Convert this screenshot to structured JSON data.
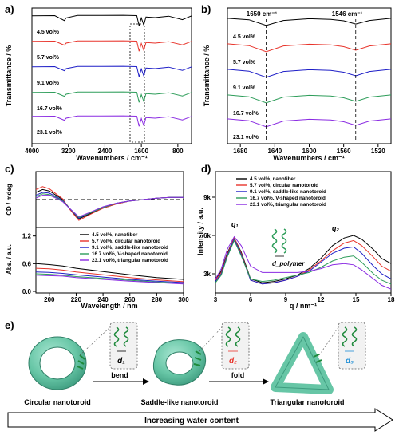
{
  "chart_data": [
    {
      "panel": "a)",
      "type": "line",
      "xlabel": "Wavenumbers / cm⁻¹",
      "ylabel": "Transmittance / %",
      "x_ticks": [
        4000,
        3200,
        2400,
        1600,
        800
      ],
      "xlim": [
        4000,
        500
      ],
      "x_reversed": true,
      "series": [
        {
          "name": "4.5 vol%",
          "color": "#000000",
          "x": [
            4000,
            3500,
            3290,
            3250,
            3000,
            2000,
            1700,
            1650,
            1600,
            1546,
            1500,
            1300,
            1000,
            700,
            500
          ],
          "y": [
            0.92,
            0.93,
            0.65,
            0.8,
            0.94,
            0.95,
            0.93,
            0.35,
            0.8,
            0.4,
            0.85,
            0.82,
            0.9,
            0.7,
            0.92
          ]
        },
        {
          "name": "5.7 vol%",
          "color": "#e8342b",
          "x": [
            4000,
            3500,
            3290,
            3250,
            3000,
            2000,
            1700,
            1650,
            1600,
            1546,
            1500,
            1300,
            1000,
            700,
            500
          ],
          "y": [
            0.92,
            0.93,
            0.7,
            0.82,
            0.94,
            0.95,
            0.93,
            0.35,
            0.8,
            0.4,
            0.85,
            0.82,
            0.9,
            0.72,
            0.92
          ]
        },
        {
          "name": "9.1 vol%",
          "color": "#1f1fc7",
          "x": [
            4000,
            3500,
            3290,
            3250,
            3000,
            2000,
            1700,
            1650,
            1600,
            1546,
            1500,
            1300,
            1000,
            700,
            500
          ],
          "y": [
            0.92,
            0.93,
            0.7,
            0.82,
            0.94,
            0.95,
            0.93,
            0.35,
            0.8,
            0.4,
            0.85,
            0.82,
            0.9,
            0.72,
            0.92
          ]
        },
        {
          "name": "16.7 vol%",
          "color": "#2e9d5a",
          "x": [
            4000,
            3500,
            3290,
            3250,
            3000,
            2000,
            1700,
            1650,
            1600,
            1546,
            1500,
            1300,
            1000,
            700,
            500
          ],
          "y": [
            0.92,
            0.93,
            0.7,
            0.82,
            0.94,
            0.95,
            0.93,
            0.35,
            0.8,
            0.4,
            0.85,
            0.82,
            0.9,
            0.72,
            0.92
          ]
        },
        {
          "name": "23.1 vol%",
          "color": "#8a2be2",
          "x": [
            4000,
            3500,
            3290,
            3250,
            3000,
            2000,
            1700,
            1650,
            1600,
            1546,
            1500,
            1300,
            1000,
            700,
            500
          ],
          "y": [
            0.92,
            0.93,
            0.7,
            0.82,
            0.94,
            0.95,
            0.93,
            0.35,
            0.8,
            0.4,
            0.85,
            0.82,
            0.9,
            0.72,
            0.92
          ]
        }
      ]
    },
    {
      "panel": "b)",
      "type": "line",
      "xlabel": "Wavenumbers / cm⁻¹",
      "ylabel": "Transmittance / %",
      "x_ticks": [
        1680,
        1640,
        1600,
        1560,
        1520
      ],
      "xlim": [
        1695,
        1505
      ],
      "x_reversed": true,
      "annotations": [
        "1650 cm⁻¹",
        "1546 cm⁻¹"
      ],
      "marker_lines_x": [
        1650,
        1546
      ],
      "series": [
        {
          "name": "4.5 vol%",
          "color": "#000000",
          "x": [
            1695,
            1670,
            1650,
            1630,
            1600,
            1575,
            1560,
            1546,
            1530,
            1505
          ],
          "y": [
            0.95,
            0.85,
            0.45,
            0.8,
            0.92,
            0.88,
            0.78,
            0.55,
            0.8,
            0.95
          ]
        },
        {
          "name": "5.7 vol%",
          "color": "#e8342b",
          "x": [
            1695,
            1670,
            1650,
            1630,
            1600,
            1575,
            1560,
            1546,
            1530,
            1505
          ],
          "y": [
            0.95,
            0.82,
            0.4,
            0.8,
            0.92,
            0.88,
            0.75,
            0.5,
            0.8,
            0.95
          ]
        },
        {
          "name": "9.1 vol%",
          "color": "#1f1fc7",
          "x": [
            1695,
            1670,
            1650,
            1630,
            1600,
            1575,
            1560,
            1546,
            1530,
            1505
          ],
          "y": [
            0.95,
            0.82,
            0.4,
            0.8,
            0.92,
            0.88,
            0.75,
            0.5,
            0.8,
            0.95
          ]
        },
        {
          "name": "16.7 vol%",
          "color": "#2e9d5a",
          "x": [
            1695,
            1670,
            1650,
            1630,
            1600,
            1575,
            1560,
            1546,
            1530,
            1505
          ],
          "y": [
            0.95,
            0.82,
            0.4,
            0.8,
            0.92,
            0.88,
            0.75,
            0.5,
            0.8,
            0.95
          ]
        },
        {
          "name": "23.1 vol%",
          "color": "#8a2be2",
          "x": [
            1695,
            1670,
            1650,
            1630,
            1600,
            1575,
            1560,
            1546,
            1530,
            1505
          ],
          "y": [
            0.95,
            0.82,
            0.4,
            0.8,
            0.92,
            0.88,
            0.75,
            0.5,
            0.8,
            0.95
          ]
        }
      ]
    },
    {
      "panel": "c) top",
      "type": "line",
      "xlabel": "",
      "ylabel": "CD / mdeg",
      "x_ticks": [
        200,
        220,
        240,
        260,
        280,
        300
      ],
      "xlim": [
        190,
        300
      ],
      "zero_line": true,
      "series": [
        {
          "name": "4.5 vol%, nanofiber",
          "color": "#000000",
          "x": [
            190,
            195,
            200,
            205,
            210,
            215,
            222,
            230,
            240,
            250,
            260,
            270,
            280,
            290,
            300
          ],
          "y": [
            10,
            14,
            12,
            6,
            0,
            -12,
            -27,
            -20,
            -12,
            -6,
            -2,
            0,
            2,
            3,
            3
          ]
        },
        {
          "name": "5.7 vol%, circular nanotoroid",
          "color": "#e8342b",
          "x": [
            190,
            195,
            200,
            205,
            210,
            215,
            222,
            230,
            240,
            250,
            260,
            270,
            280,
            290,
            300
          ],
          "y": [
            14,
            18,
            15,
            8,
            1,
            -13,
            -29,
            -21,
            -12,
            -6,
            -2,
            0,
            2,
            3,
            3
          ]
        },
        {
          "name": "9.1 vol%, saddle-like nanotoroid",
          "color": "#1f1fc7",
          "x": [
            190,
            195,
            200,
            205,
            210,
            215,
            222,
            230,
            240,
            250,
            260,
            270,
            280,
            290,
            300
          ],
          "y": [
            6,
            10,
            9,
            4,
            -1,
            -12,
            -26,
            -19,
            -11,
            -5,
            -2,
            0,
            2,
            3,
            3
          ]
        },
        {
          "name": "16.7 vol%, V-shaped nanotoroid",
          "color": "#2e9d5a",
          "x": [
            190,
            195,
            200,
            205,
            210,
            215,
            222,
            230,
            240,
            250,
            260,
            270,
            280,
            290,
            300
          ],
          "y": [
            4,
            8,
            7,
            3,
            -2,
            -12,
            -25,
            -19,
            -11,
            -5,
            -2,
            0,
            2,
            3,
            3
          ]
        },
        {
          "name": "23.1 vol%, triangular nanotoroid",
          "color": "#8a2be2",
          "x": [
            190,
            195,
            200,
            205,
            210,
            215,
            222,
            230,
            240,
            250,
            260,
            270,
            280,
            290,
            300
          ],
          "y": [
            2,
            6,
            6,
            2,
            -3,
            -12,
            -24,
            -18,
            -10,
            -5,
            -2,
            0,
            2,
            3,
            3
          ]
        }
      ]
    },
    {
      "panel": "c) bottom",
      "type": "line",
      "xlabel": "Wavelength / nm",
      "ylabel": "Abs. / a.u.",
      "x_ticks": [
        200,
        220,
        240,
        260,
        280,
        300
      ],
      "y_ticks": [
        0.0,
        0.6,
        1.2
      ],
      "xlim": [
        190,
        300
      ],
      "ylim": [
        0,
        1.35
      ],
      "series": [
        {
          "name": "4.5 vol%, nanofiber",
          "color": "#000000",
          "x": [
            190,
            200,
            210,
            220,
            240,
            260,
            280,
            300
          ],
          "y": [
            0.6,
            0.58,
            0.55,
            0.5,
            0.43,
            0.36,
            0.3,
            0.26
          ]
        },
        {
          "name": "5.7 vol%, circular nanotoroid",
          "color": "#e8342b",
          "x": [
            190,
            200,
            210,
            220,
            240,
            260,
            280,
            300
          ],
          "y": [
            0.5,
            0.49,
            0.46,
            0.42,
            0.36,
            0.3,
            0.25,
            0.21
          ]
        },
        {
          "name": "9.1 vol%, saddle-like nanotoroid",
          "color": "#1f1fc7",
          "x": [
            190,
            200,
            210,
            220,
            240,
            260,
            280,
            300
          ],
          "y": [
            0.42,
            0.41,
            0.39,
            0.36,
            0.31,
            0.26,
            0.22,
            0.19
          ]
        },
        {
          "name": "16.7 vol%, V-shaped nanotoroid",
          "color": "#2e9d5a",
          "x": [
            190,
            200,
            210,
            220,
            240,
            260,
            280,
            300
          ],
          "y": [
            0.38,
            0.37,
            0.35,
            0.32,
            0.28,
            0.24,
            0.2,
            0.17
          ]
        },
        {
          "name": "23.1 vol%, triangular nanotoroid",
          "color": "#8a2be2",
          "x": [
            190,
            200,
            210,
            220,
            240,
            260,
            280,
            300
          ],
          "y": [
            0.35,
            0.34,
            0.33,
            0.3,
            0.26,
            0.22,
            0.19,
            0.16
          ]
        }
      ]
    },
    {
      "panel": "d)",
      "type": "line",
      "xlabel": "q / nm⁻¹",
      "ylabel": "Intensity / a.u.",
      "x_ticks": [
        3,
        6,
        9,
        12,
        15,
        18
      ],
      "y_ticks": [
        "3k",
        "6k",
        "9k"
      ],
      "xlim": [
        3,
        18
      ],
      "ylim": [
        1500,
        11000
      ],
      "annotations": [
        "q₁",
        "q₂",
        "d_polymer"
      ],
      "series": [
        {
          "name": "4.5 vol%, nanofiber",
          "color": "#000000",
          "x": [
            3,
            3.5,
            4,
            4.6,
            5.2,
            6,
            7,
            8,
            9,
            10,
            11,
            12,
            13,
            14,
            14.8,
            15.5,
            16.5,
            17.2,
            18
          ],
          "y": [
            2600,
            3200,
            4600,
            5800,
            4700,
            2600,
            2300,
            2400,
            2600,
            2900,
            3400,
            4200,
            5200,
            5800,
            6000,
            5700,
            4900,
            4200,
            3800
          ]
        },
        {
          "name": "5.7 vol%, circular nanotoroid",
          "color": "#e8342b",
          "x": [
            3,
            3.5,
            4,
            4.6,
            5.2,
            6,
            7,
            8,
            9,
            10,
            11,
            12,
            13,
            14,
            14.8,
            15.5,
            16.5,
            17.2,
            18
          ],
          "y": [
            2500,
            3100,
            4500,
            5800,
            4600,
            2500,
            2200,
            2300,
            2500,
            2800,
            3300,
            4000,
            4800,
            5400,
            5600,
            5200,
            4300,
            3600,
            3200
          ]
        },
        {
          "name": "9.1 vol%, saddle-like nanotoroid",
          "color": "#1f1fc7",
          "x": [
            3,
            3.5,
            4,
            4.6,
            5.2,
            6,
            7,
            8,
            9,
            10,
            11,
            12,
            13,
            14,
            14.8,
            15.5,
            16.5,
            17.2,
            18
          ],
          "y": [
            2400,
            3000,
            4400,
            5700,
            4500,
            2500,
            2200,
            2300,
            2500,
            2800,
            3200,
            3900,
            4600,
            5000,
            5100,
            4600,
            3600,
            3000,
            2600
          ]
        },
        {
          "name": "16.7 vol%, V-shaped nanotoroid",
          "color": "#2e9d5a",
          "x": [
            3,
            3.5,
            4,
            4.6,
            5.2,
            6,
            7,
            8,
            9,
            10,
            11,
            12,
            13,
            14,
            14.8,
            15.5,
            16.5,
            17.2,
            18
          ],
          "y": [
            2300,
            2900,
            4300,
            5600,
            4400,
            2600,
            2400,
            2500,
            2700,
            2900,
            3100,
            3500,
            4000,
            4300,
            4400,
            3900,
            3000,
            2500,
            2200
          ]
        },
        {
          "name": "23.1 vol%, triangular nanotoroid",
          "color": "#8a2be2",
          "x": [
            3,
            3.5,
            4,
            4.6,
            5.2,
            6,
            7,
            8,
            9,
            10,
            11,
            12,
            13,
            14,
            14.8,
            15.5,
            16.5,
            17.2,
            18
          ],
          "y": [
            2600,
            3400,
            4900,
            5900,
            5200,
            3600,
            3100,
            3100,
            3100,
            3100,
            3200,
            3400,
            3700,
            3800,
            3700,
            3300,
            2600,
            2100,
            1800
          ]
        }
      ]
    }
  ],
  "panel_labels": {
    "a": "a)",
    "b": "b)",
    "c": "c)",
    "d": "d)",
    "e": "e)"
  },
  "panel_a": {
    "legend": [
      "4.5 vol%",
      "5.7 vol%",
      "9.1 vol%",
      "16.7 vol%",
      "23.1 vol%"
    ]
  },
  "panel_b": {
    "legend": [
      "4.5 vol%",
      "5.7 vol%",
      "9.1 vol%",
      "16.7 vol%",
      "23.1 vol%"
    ]
  },
  "panel_c": {
    "legend": [
      "4.5 vol%, nanofiber",
      "5.7 vol%, circular nanotoroid",
      "9.1 vol%, saddle-like nanotoroid",
      "16.7 vol%, V-shaped nanotoroid",
      "23.1 vol%, triangular nanotoroid"
    ]
  },
  "panel_d": {
    "legend": [
      "4.5 vol%, nanofiber",
      "5.7 vol%, circular nanotoroid",
      "9.1 vol%, saddle-like nanotoroid",
      "16.7 vol%, V-shaped nanotoroid",
      "23.1 vol%, triangular nanotoroid"
    ],
    "q1": "q₁",
    "q2": "q₂",
    "d_polymer": "d_polymer"
  },
  "panel_e": {
    "labels": [
      "Circular nanotoroid",
      "Saddle-like nanotoroid",
      "Triangular nanotoroid"
    ],
    "steps": [
      "bend",
      "fold"
    ],
    "spacing_labels": [
      "d₁",
      "d₂",
      "d₃"
    ],
    "spacing_colors": [
      "#000000",
      "#e8342b",
      "#1f8fd6"
    ],
    "arrow_text": "Increasing water content",
    "toroid_color": "#67c6a6"
  }
}
